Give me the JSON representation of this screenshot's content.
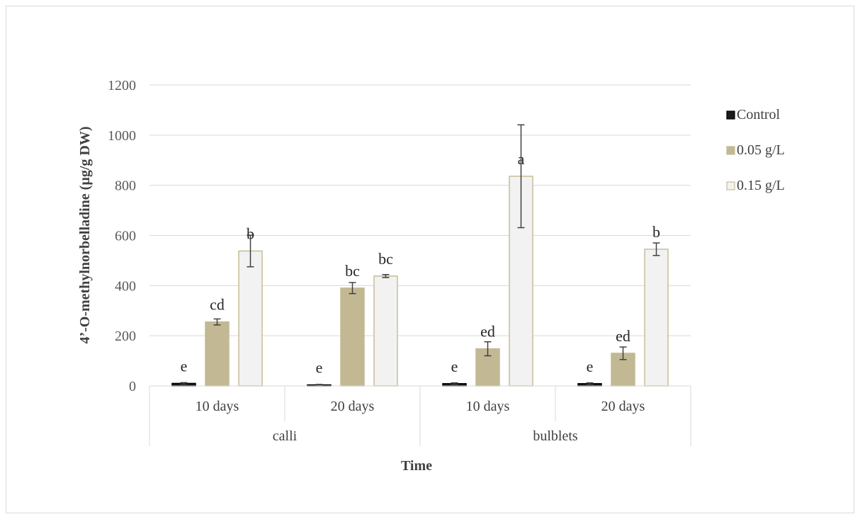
{
  "chart_data": {
    "type": "bar",
    "title": "",
    "xlabel": "Time",
    "ylabel": "4’-O-methylnorbelladine (µg/g DW)",
    "ylim": [
      0,
      1200
    ],
    "yticks": [
      0,
      200,
      400,
      600,
      800,
      1000,
      1200
    ],
    "grid": true,
    "legend_position": "right",
    "groups": [
      {
        "label": "calli",
        "categories": [
          "10 days",
          "20 days"
        ]
      },
      {
        "label": "bulblets",
        "categories": [
          "10 days",
          "20 days"
        ]
      }
    ],
    "categories": [
      "10 days",
      "20 days",
      "10 days",
      "20 days"
    ],
    "series": [
      {
        "name": "Control",
        "color": "#1a1a1a",
        "border": "#000000",
        "values": [
          10,
          4,
          9,
          9
        ],
        "errors": [
          3,
          2,
          3,
          3
        ],
        "labels": [
          "e",
          "e",
          "e",
          "e"
        ]
      },
      {
        "name": "0.05 g/L",
        "color": "#c2b994",
        "border": "#c2b994",
        "values": [
          255,
          390,
          148,
          130
        ],
        "errors": [
          12,
          22,
          28,
          25
        ],
        "labels": [
          "cd",
          "bc",
          "ed",
          "ed"
        ]
      },
      {
        "name": "0.15 g/L",
        "color": "#f2f2f2",
        "border": "#c6bd98",
        "values": [
          538,
          438,
          836,
          545
        ],
        "errors": [
          63,
          6,
          205,
          25
        ],
        "labels": [
          "b",
          "bc",
          "a",
          "b"
        ]
      }
    ]
  }
}
